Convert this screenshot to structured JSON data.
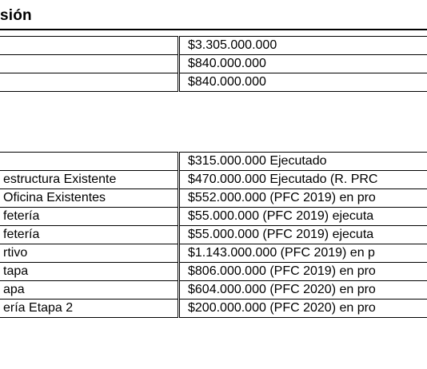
{
  "section1": {
    "heading": "sión",
    "rows": [
      {
        "label": "",
        "value": "$3.305.000.000"
      },
      {
        "label": "",
        "value": "$840.000.000"
      },
      {
        "label": "",
        "value": "$840.000.000"
      }
    ]
  },
  "section2": {
    "rows": [
      {
        "label": "",
        "value": "$315.000.000 Ejecutado"
      },
      {
        "label": "estructura Existente",
        "value": "$470.000.000 Ejecutado (R. PRC"
      },
      {
        "label": " Oficina Existentes",
        "value": "$552.000.000 (PFC 2019) en pro"
      },
      {
        "label": "fetería",
        "value": "$55.000.000 (PFC 2019) ejecuta"
      },
      {
        "label": "fetería",
        "value": "$55.000.000 (PFC 2019) ejecuta"
      },
      {
        "label": "rtivo",
        "value": "$1.143.000.000 (PFC 2019) en p"
      },
      {
        "label": "tapa",
        "value": "$806.000.000 (PFC 2019) en pro"
      },
      {
        "label": "apa",
        "value": "$604.000.000 (PFC 2020) en pro"
      },
      {
        "label": "ería Etapa 2",
        "value": "$200.000.000 (PFC 2020) en pro"
      }
    ]
  }
}
